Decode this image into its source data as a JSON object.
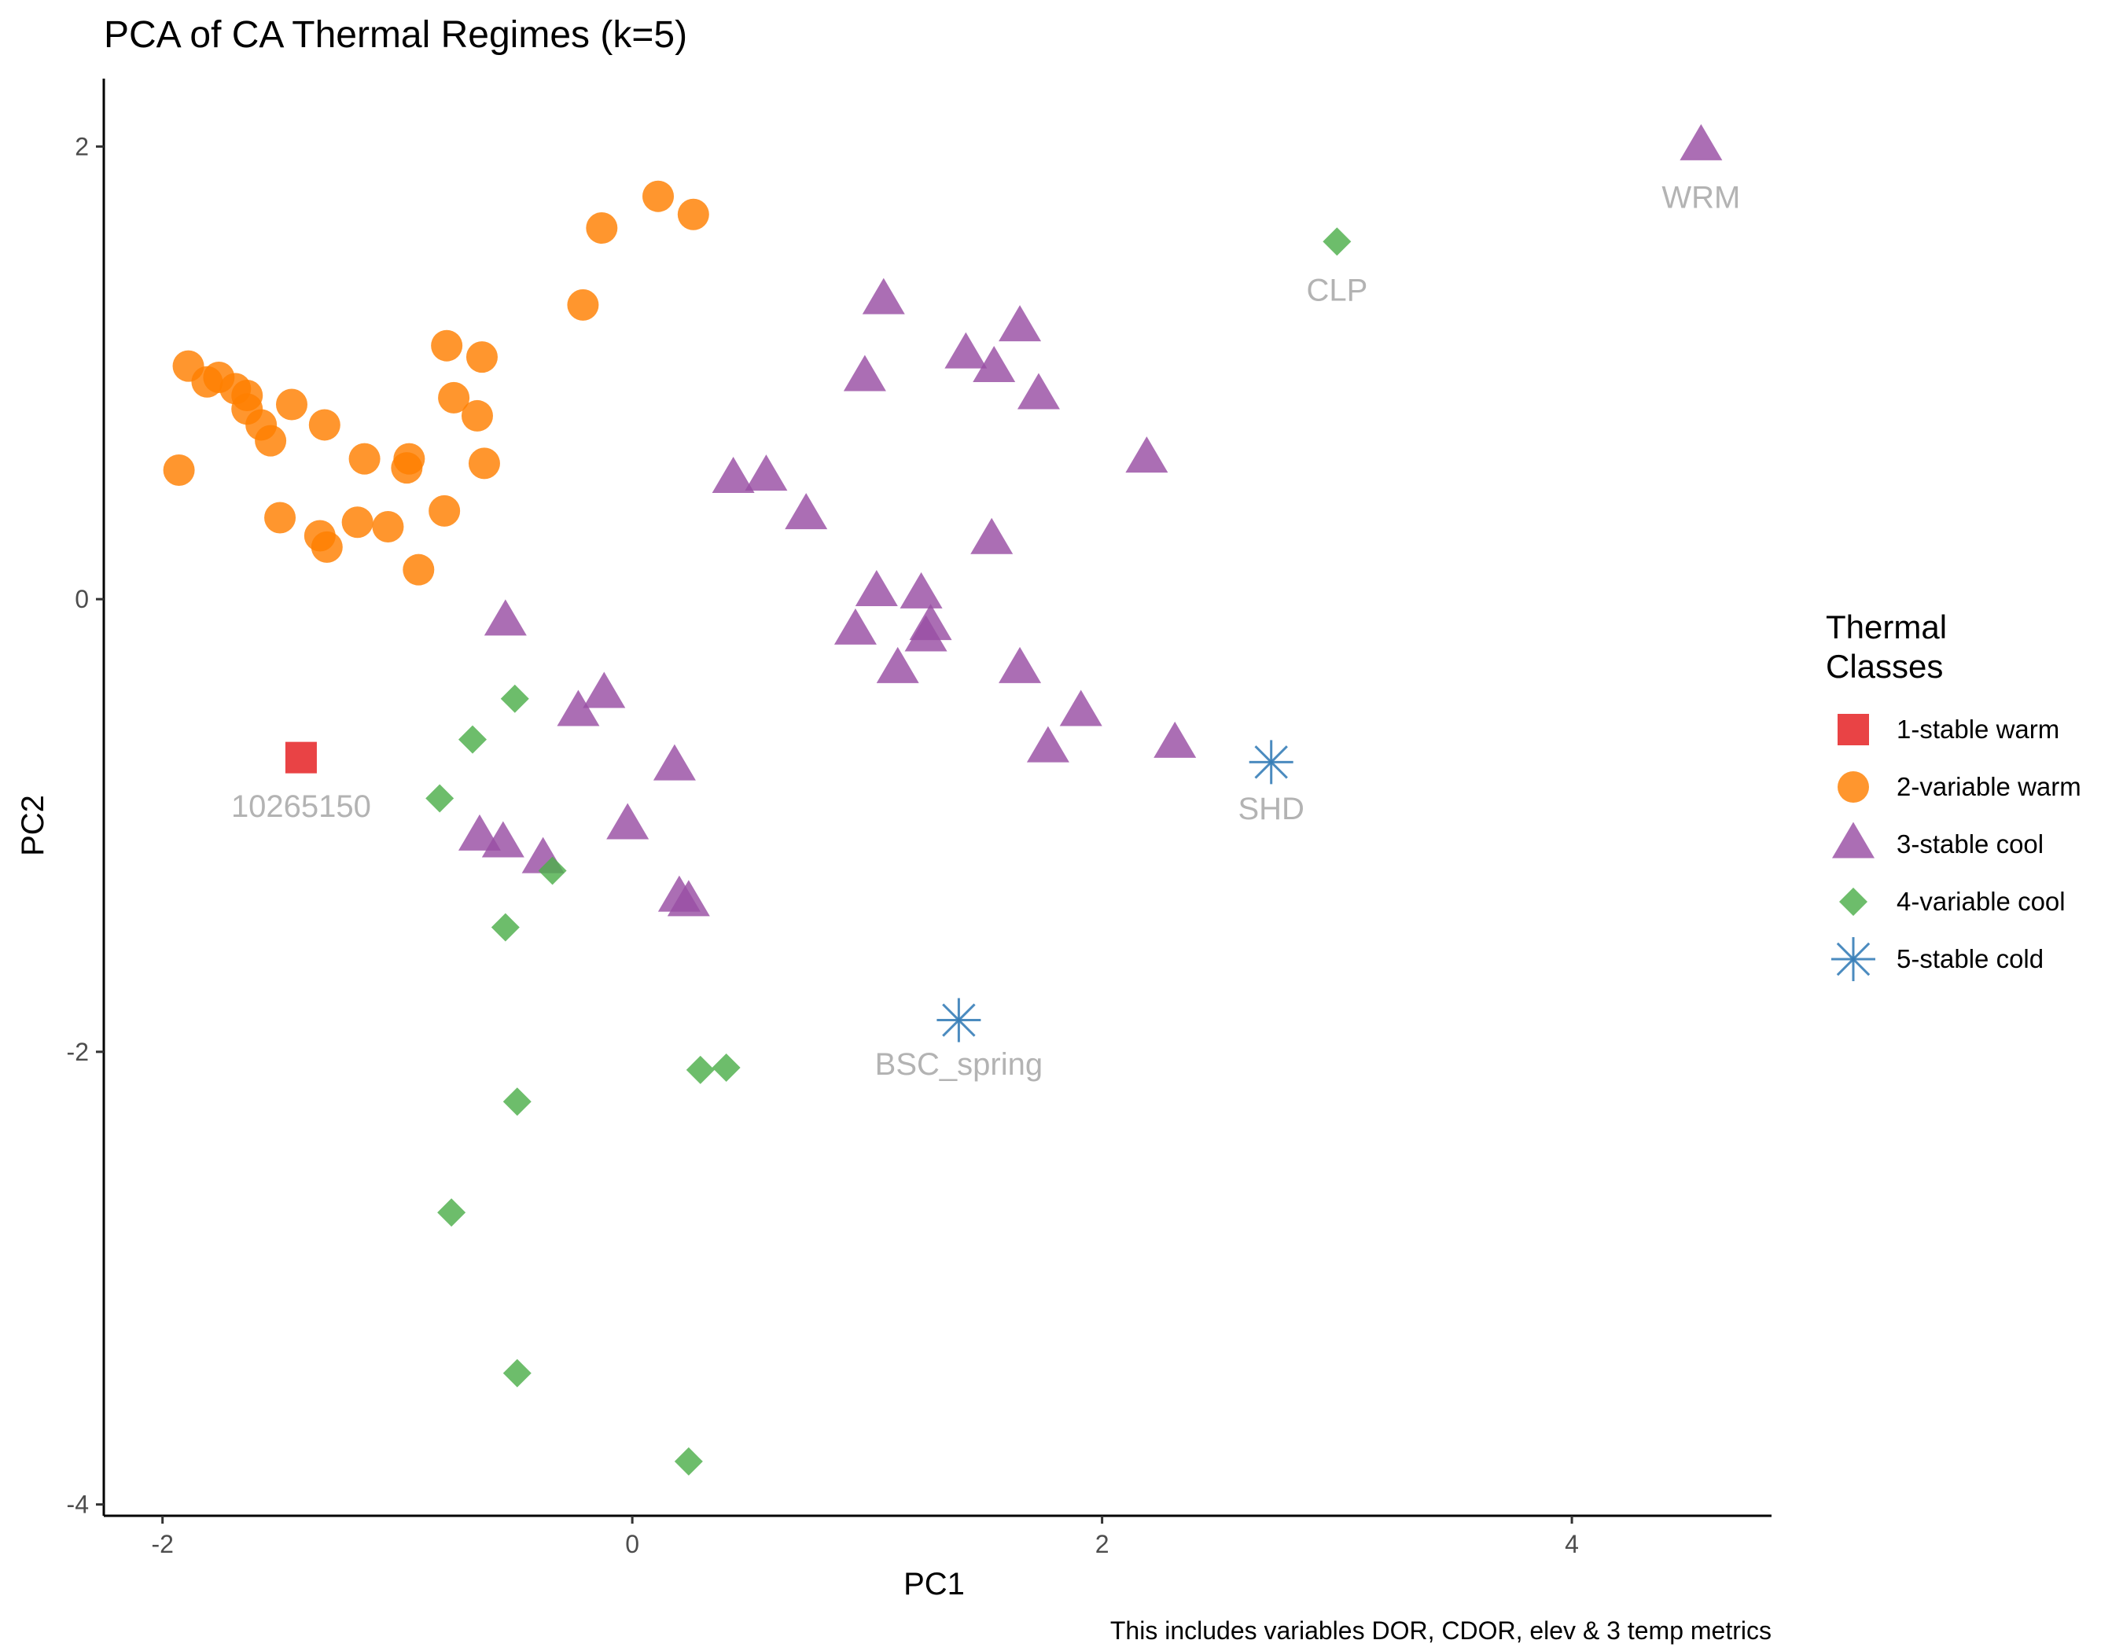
{
  "chart_data": {
    "type": "scatter",
    "title": "PCA of CA Thermal Regimes (k=5)",
    "xlabel": "PC1",
    "ylabel": "PC2",
    "caption": "This includes variables DOR, CDOR, elev & 3 temp metrics",
    "xlim": [
      -2.25,
      4.85
    ],
    "ylim": [
      -4.05,
      2.3
    ],
    "x_ticks": [
      -2,
      0,
      2,
      4
    ],
    "x_tick_labels": [
      "-2",
      "0",
      "2",
      "4"
    ],
    "y_ticks": [
      2,
      0,
      -2,
      -4
    ],
    "y_tick_labels": [
      "2",
      "0",
      "-2",
      "-4"
    ],
    "grid": false,
    "legend": {
      "title_line1": "Thermal",
      "title_line2": "Classes",
      "placement": "right"
    },
    "series": [
      {
        "name": "1-stable warm",
        "color": "#E41A1C",
        "marker": "square",
        "points": [
          [
            -1.41,
            -0.7
          ]
        ]
      },
      {
        "name": "2-variable warm",
        "color": "#FF7F00",
        "marker": "circle",
        "points": [
          [
            -1.93,
            0.57
          ],
          [
            -1.89,
            1.03
          ],
          [
            -1.81,
            0.96
          ],
          [
            -1.76,
            0.98
          ],
          [
            -1.69,
            0.93
          ],
          [
            -1.64,
            0.9
          ],
          [
            -1.64,
            0.84
          ],
          [
            -1.58,
            0.77
          ],
          [
            -1.54,
            0.7
          ],
          [
            -1.45,
            0.86
          ],
          [
            -1.5,
            0.36
          ],
          [
            -1.33,
            0.28
          ],
          [
            -1.31,
            0.77
          ],
          [
            -1.3,
            0.23
          ],
          [
            -1.17,
            0.34
          ],
          [
            -1.14,
            0.62
          ],
          [
            -1.04,
            0.32
          ],
          [
            -0.96,
            0.58
          ],
          [
            -0.95,
            0.62
          ],
          [
            -0.91,
            0.13
          ],
          [
            -0.8,
            0.39
          ],
          [
            -0.79,
            1.12
          ],
          [
            -0.76,
            0.89
          ],
          [
            -0.66,
            0.81
          ],
          [
            -0.64,
            1.07
          ],
          [
            -0.63,
            0.6
          ],
          [
            -0.21,
            1.3
          ],
          [
            -0.13,
            1.64
          ],
          [
            0.11,
            1.78
          ],
          [
            0.26,
            1.7
          ]
        ]
      },
      {
        "name": "3-stable cool",
        "color": "#984EA3",
        "marker": "triangle",
        "points": [
          [
            4.55,
            2.0
          ],
          [
            1.07,
            1.32
          ],
          [
            1.65,
            1.2
          ],
          [
            1.42,
            1.08
          ],
          [
            0.99,
            0.98
          ],
          [
            1.54,
            1.02
          ],
          [
            1.73,
            0.9
          ],
          [
            2.19,
            0.62
          ],
          [
            0.43,
            0.53
          ],
          [
            0.57,
            0.54
          ],
          [
            0.74,
            0.37
          ],
          [
            1.53,
            0.26
          ],
          [
            1.04,
            0.03
          ],
          [
            1.23,
            0.02
          ],
          [
            0.95,
            -0.14
          ],
          [
            1.27,
            -0.12
          ],
          [
            1.25,
            -0.17
          ],
          [
            1.13,
            -0.31
          ],
          [
            1.65,
            -0.31
          ],
          [
            -0.54,
            -0.1
          ],
          [
            -0.12,
            -0.42
          ],
          [
            -0.23,
            -0.5
          ],
          [
            1.91,
            -0.5
          ],
          [
            2.31,
            -0.64
          ],
          [
            1.77,
            -0.66
          ],
          [
            0.18,
            -0.74
          ],
          [
            -0.02,
            -1.0
          ],
          [
            -0.65,
            -1.05
          ],
          [
            -0.55,
            -1.08
          ],
          [
            -0.38,
            -1.15
          ],
          [
            0.2,
            -1.32
          ],
          [
            0.24,
            -1.34
          ]
        ]
      },
      {
        "name": "4-variable cool",
        "color": "#4DAF4A",
        "marker": "diamond",
        "points": [
          [
            3.0,
            1.58
          ],
          [
            -0.5,
            -0.44
          ],
          [
            -0.68,
            -0.62
          ],
          [
            -0.82,
            -0.88
          ],
          [
            -0.34,
            -1.2
          ],
          [
            -0.54,
            -1.45
          ],
          [
            -0.49,
            -2.22
          ],
          [
            0.29,
            -2.08
          ],
          [
            0.4,
            -2.07
          ],
          [
            -0.77,
            -2.71
          ],
          [
            -0.49,
            -3.42
          ],
          [
            0.24,
            -3.81
          ]
        ]
      },
      {
        "name": "5-stable cold",
        "color": "#377EB8",
        "marker": "asterisk",
        "points": [
          [
            2.72,
            -0.72
          ],
          [
            1.39,
            -1.86
          ]
        ]
      }
    ],
    "annotations": [
      {
        "text": "WRM",
        "x": 4.55,
        "y": 1.77
      },
      {
        "text": "CLP",
        "x": 3.0,
        "y": 1.36
      },
      {
        "text": "10265150",
        "x": -1.41,
        "y": -0.92
      },
      {
        "text": "SHD",
        "x": 2.72,
        "y": -0.93
      },
      {
        "text": "BSC_spring",
        "x": 1.39,
        "y": -2.06
      }
    ]
  }
}
